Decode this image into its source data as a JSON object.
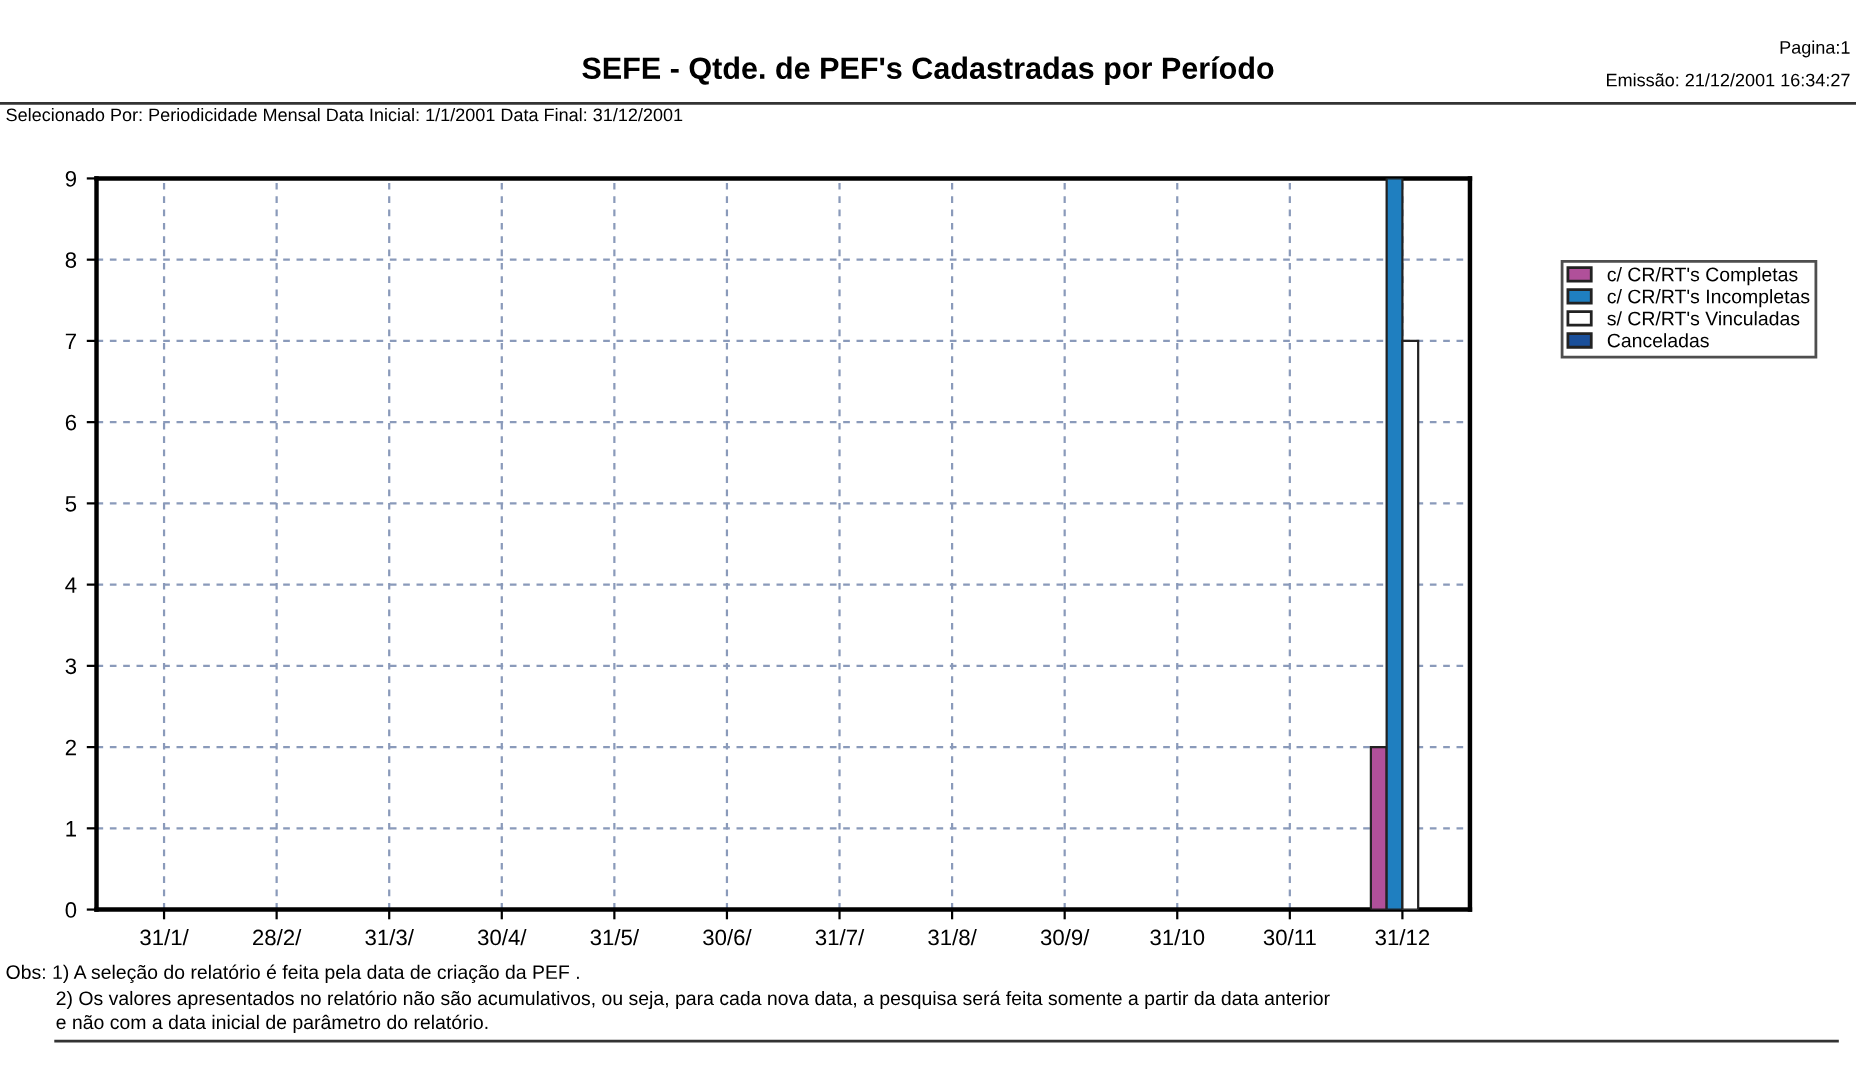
{
  "chart_data": {
    "type": "bar",
    "title": "SEFE - Qtde. de PEF's Cadastradas por Período",
    "subtitle": "Selecionado Por: Periodicidade Mensal Data Inicial: 1/1/2001 Data Final: 31/12/2001",
    "annotations": [
      "Pagina:1",
      "Emissão: 21/12/2001 16:34:27",
      "Obs: 1) A seleção do relatório é feita pela data de criação da PEF .",
      "2) Os valores apresentados no relatório não são acumulativos, ou seja, para cada nova data, a pesquisa será feita somente a partir da data anterior",
      "e não com a data inicial de parâmetro do relatório."
    ],
    "categories": [
      "31/1/",
      "28/2/",
      "31/3/",
      "30/4/",
      "31/5/",
      "30/6/",
      "31/7/",
      "31/8/",
      "30/9/",
      "31/10",
      "30/11",
      "31/12"
    ],
    "series": [
      {
        "name": "c/ CR/RT's Completas",
        "color": "#b0509a",
        "values": [
          0,
          0,
          0,
          0,
          0,
          0,
          0,
          0,
          0,
          0,
          0,
          2
        ]
      },
      {
        "name": "c/ CR/RT's Incompletas",
        "color": "#1f7fc0",
        "values": [
          0,
          0,
          0,
          0,
          0,
          0,
          0,
          0,
          0,
          0,
          0,
          9
        ]
      },
      {
        "name": "s/ CR/RT's Vinculadas",
        "color": "#ffffff",
        "values": [
          0,
          0,
          0,
          0,
          0,
          0,
          0,
          0,
          0,
          0,
          0,
          7
        ]
      },
      {
        "name": "Canceladas",
        "color": "#1a4f9a",
        "values": [
          0,
          0,
          0,
          0,
          0,
          0,
          0,
          0,
          0,
          0,
          0,
          0
        ]
      }
    ],
    "ylim": [
      0,
      9
    ],
    "yticks": [
      0,
      1,
      2,
      3,
      4,
      5,
      6,
      7,
      8,
      9
    ],
    "grid": true,
    "legend": "top right"
  }
}
